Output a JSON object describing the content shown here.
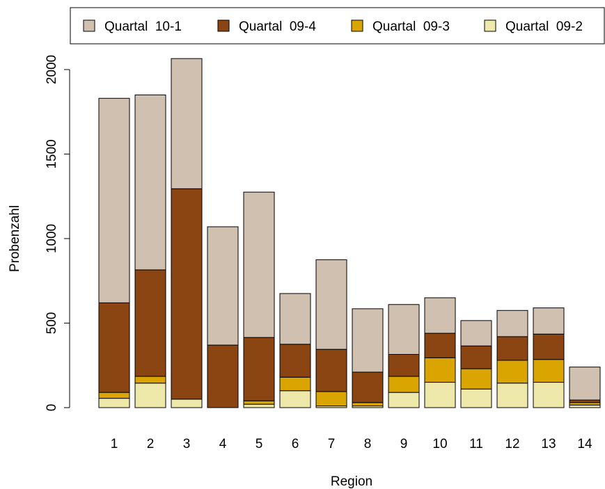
{
  "chart_data": {
    "type": "bar",
    "stacked": true,
    "title": "",
    "xlabel": "Region",
    "ylabel": "Probenzahl",
    "ylim": [
      0,
      2000
    ],
    "yticks": [
      0,
      500,
      1000,
      1500,
      2000
    ],
    "categories": [
      "1",
      "2",
      "3",
      "4",
      "5",
      "6",
      "7",
      "8",
      "9",
      "10",
      "11",
      "12",
      "13",
      "14"
    ],
    "series": [
      {
        "name": "Quartal  09-2",
        "color": "#EEE8AA",
        "values": [
          55,
          145,
          50,
          0,
          20,
          100,
          10,
          10,
          90,
          150,
          110,
          145,
          150,
          15
        ]
      },
      {
        "name": "Quartal  09-3",
        "color": "#DAA500",
        "values": [
          35,
          40,
          0,
          0,
          20,
          80,
          85,
          20,
          95,
          145,
          120,
          135,
          135,
          15
        ]
      },
      {
        "name": "Quartal  09-4",
        "color": "#8B4513",
        "values": [
          530,
          630,
          1245,
          370,
          375,
          195,
          250,
          180,
          130,
          145,
          135,
          140,
          150,
          15
        ]
      },
      {
        "name": "Quartal  10-1",
        "color": "#CFC0B0",
        "values": [
          1210,
          1035,
          770,
          700,
          860,
          300,
          530,
          375,
          295,
          210,
          150,
          155,
          155,
          195
        ]
      }
    ],
    "legend": {
      "position": "top",
      "order": [
        "Quartal  10-1",
        "Quartal  09-4",
        "Quartal  09-3",
        "Quartal  09-2"
      ]
    },
    "grid": false
  }
}
